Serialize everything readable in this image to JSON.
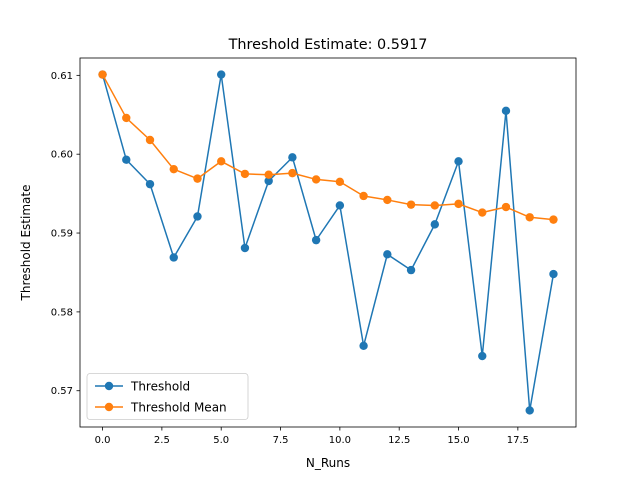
{
  "chart_data": {
    "type": "line",
    "title": "Threshold Estimate: 0.5917",
    "xlabel": "N_Runs",
    "ylabel": "Threshold Estimate",
    "x": [
      0,
      1,
      2,
      3,
      4,
      5,
      6,
      7,
      8,
      9,
      10,
      11,
      12,
      13,
      14,
      15,
      16,
      17,
      18,
      19
    ],
    "series": [
      {
        "name": "Threshold",
        "color": "#1f77b4",
        "values": [
          0.6101,
          0.5993,
          0.5962,
          0.5869,
          0.5921,
          0.6101,
          0.5881,
          0.5966,
          0.5996,
          0.5891,
          0.5935,
          0.5757,
          0.5873,
          0.5853,
          0.5911,
          0.5991,
          0.5744,
          0.6055,
          0.5675,
          0.5848
        ]
      },
      {
        "name": "Threshold Mean",
        "color": "#ff7f0e",
        "values": [
          0.6101,
          0.6046,
          0.6018,
          0.5981,
          0.5969,
          0.5991,
          0.5975,
          0.5974,
          0.5976,
          0.5968,
          0.5965,
          0.5947,
          0.5942,
          0.5936,
          0.5935,
          0.5937,
          0.5926,
          0.5933,
          0.592,
          0.5917
        ]
      }
    ],
    "xlim": [
      -0.95,
      19.95
    ],
    "ylim": [
      0.5654,
      0.6122
    ],
    "xticks": [
      0,
      2.5,
      5,
      7.5,
      10,
      12.5,
      15,
      17.5
    ],
    "xtick_labels": [
      "0.0",
      "2.5",
      "5.0",
      "7.5",
      "10.0",
      "12.5",
      "15.0",
      "17.5"
    ],
    "yticks": [
      0.57,
      0.58,
      0.59,
      0.6,
      0.61
    ],
    "ytick_labels": [
      "0.57",
      "0.58",
      "0.59",
      "0.60",
      "0.61"
    ],
    "grid": false,
    "legend_position": "lower-left"
  }
}
